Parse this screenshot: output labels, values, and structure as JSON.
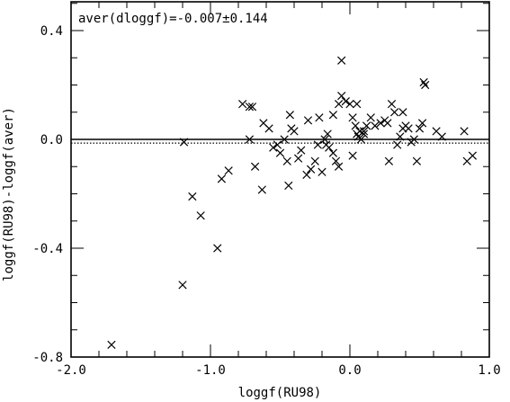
{
  "chart_data": {
    "type": "scatter",
    "title": "",
    "xlabel": "loggf(RU98)",
    "ylabel": "loggf(RU98)-loggf(aver)",
    "annotation": "aver(dloggf)=-0.007±0.144",
    "xlim": [
      -2.0,
      1.0
    ],
    "ylim": [
      -0.8,
      0.5
    ],
    "x_tick_labels": [
      {
        "value": -2.0,
        "label": "-2.0"
      },
      {
        "value": -1.0,
        "label": "-1.0"
      },
      {
        "value": 0.0,
        "label": "0.0"
      },
      {
        "value": 1.0,
        "label": "1.0"
      }
    ],
    "y_tick_labels": [
      {
        "value": 0.4,
        "label": "0.4"
      },
      {
        "value": 0.0,
        "label": "0.0"
      },
      {
        "value": -0.4,
        "label": "-0.4"
      },
      {
        "value": -0.8,
        "label": "-0.8"
      }
    ],
    "reference_lines": {
      "zero_solid": 0.0,
      "mean_dotted": -0.007
    },
    "marker": "x",
    "series": [
      {
        "points": [
          [
            -1.71,
            -0.755
          ],
          [
            -1.2,
            -0.535
          ],
          [
            -0.95,
            -0.4
          ],
          [
            -1.07,
            -0.28
          ],
          [
            -1.13,
            -0.21
          ],
          [
            -0.92,
            -0.145
          ],
          [
            -0.87,
            -0.115
          ],
          [
            -1.19,
            -0.01
          ],
          [
            -0.77,
            0.13
          ],
          [
            -0.72,
            0.12
          ],
          [
            -0.7,
            0.12
          ],
          [
            -0.72,
            0.0
          ],
          [
            -0.68,
            -0.1
          ],
          [
            -0.63,
            -0.185
          ],
          [
            -0.62,
            0.06
          ],
          [
            -0.58,
            0.04
          ],
          [
            -0.55,
            -0.03
          ],
          [
            -0.52,
            -0.02
          ],
          [
            -0.5,
            -0.05
          ],
          [
            -0.47,
            0.0
          ],
          [
            -0.45,
            -0.08
          ],
          [
            -0.43,
            0.09
          ],
          [
            -0.42,
            0.04
          ],
          [
            -0.4,
            0.03
          ],
          [
            -0.37,
            -0.07
          ],
          [
            -0.35,
            -0.04
          ],
          [
            -0.44,
            -0.17
          ],
          [
            -0.31,
            -0.13
          ],
          [
            -0.28,
            -0.11
          ],
          [
            -0.3,
            0.07
          ],
          [
            -0.25,
            -0.08
          ],
          [
            -0.23,
            -0.02
          ],
          [
            -0.22,
            0.08
          ],
          [
            -0.2,
            -0.12
          ],
          [
            -0.18,
            0.0
          ],
          [
            -0.17,
            -0.02
          ],
          [
            -0.15,
            -0.03
          ],
          [
            -0.12,
            -0.05
          ],
          [
            -0.1,
            -0.08
          ],
          [
            -0.08,
            -0.1
          ],
          [
            -0.16,
            0.02
          ],
          [
            -0.12,
            0.09
          ],
          [
            -0.08,
            0.13
          ],
          [
            -0.06,
            0.16
          ],
          [
            -0.03,
            0.14
          ],
          [
            -0.06,
            0.29
          ],
          [
            0.0,
            0.13
          ],
          [
            0.02,
            0.08
          ],
          [
            0.04,
            0.05
          ],
          [
            0.05,
            0.02
          ],
          [
            0.06,
            0.01
          ],
          [
            0.07,
            0.03
          ],
          [
            0.08,
            0.0
          ],
          [
            0.1,
            0.03
          ],
          [
            0.12,
            0.05
          ],
          [
            0.15,
            0.08
          ],
          [
            0.18,
            0.05
          ],
          [
            0.22,
            0.06
          ],
          [
            0.25,
            0.07
          ],
          [
            0.27,
            0.06
          ],
          [
            0.28,
            -0.08
          ],
          [
            0.3,
            0.13
          ],
          [
            0.32,
            0.1
          ],
          [
            0.34,
            -0.02
          ],
          [
            0.36,
            0.01
          ],
          [
            0.38,
            0.1
          ],
          [
            0.4,
            0.05
          ],
          [
            0.42,
            0.04
          ],
          [
            0.44,
            -0.01
          ],
          [
            0.46,
            0.0
          ],
          [
            0.48,
            -0.08
          ],
          [
            0.5,
            0.04
          ],
          [
            0.52,
            0.06
          ],
          [
            0.53,
            0.21
          ],
          [
            0.54,
            0.2
          ],
          [
            0.62,
            0.03
          ],
          [
            0.66,
            0.01
          ],
          [
            0.82,
            0.03
          ],
          [
            0.84,
            -0.08
          ],
          [
            0.88,
            -0.06
          ],
          [
            0.02,
            -0.06
          ],
          [
            0.05,
            0.13
          ],
          [
            0.1,
            0.02
          ],
          [
            0.38,
            0.04
          ]
        ]
      }
    ]
  }
}
